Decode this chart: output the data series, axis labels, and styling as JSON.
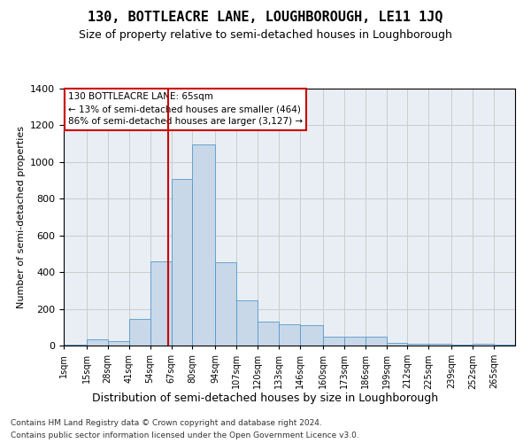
{
  "title": "130, BOTTLEACRE LANE, LOUGHBOROUGH, LE11 1JQ",
  "subtitle": "Size of property relative to semi-detached houses in Loughborough",
  "xlabel": "Distribution of semi-detached houses by size in Loughborough",
  "ylabel": "Number of semi-detached properties",
  "footer_line1": "Contains HM Land Registry data © Crown copyright and database right 2024.",
  "footer_line2": "Contains public sector information licensed under the Open Government Licence v3.0.",
  "annotation_title": "130 BOTTLEACRE LANE: 65sqm",
  "annotation_line1": "← 13% of semi-detached houses are smaller (464)",
  "annotation_line2": "86% of semi-detached houses are larger (3,127) →",
  "property_size": 65,
  "bar_color": "#c8d8e8",
  "bar_edge_color": "#5599cc",
  "grid_color": "#cccccc",
  "bg_color": "#e8eef4",
  "redline_color": "#cc0000",
  "annotation_box_color": "#ffffff",
  "annotation_box_edge": "#cc0000",
  "categories": [
    "1sqm",
    "15sqm",
    "28sqm",
    "41sqm",
    "54sqm",
    "67sqm",
    "80sqm",
    "94sqm",
    "107sqm",
    "120sqm",
    "133sqm",
    "146sqm",
    "160sqm",
    "173sqm",
    "186sqm",
    "199sqm",
    "212sqm",
    "225sqm",
    "239sqm",
    "252sqm",
    "265sqm"
  ],
  "bin_edges": [
    1,
    15,
    28,
    41,
    54,
    67,
    80,
    94,
    107,
    120,
    133,
    146,
    160,
    173,
    186,
    199,
    212,
    225,
    239,
    252,
    265,
    278
  ],
  "values": [
    5,
    35,
    25,
    145,
    460,
    910,
    1095,
    455,
    245,
    130,
    115,
    110,
    50,
    50,
    50,
    15,
    10,
    10,
    5,
    10,
    5
  ],
  "ylim": [
    0,
    1400
  ],
  "yticks": [
    0,
    200,
    400,
    600,
    800,
    1000,
    1200,
    1400
  ],
  "title_fontsize": 11,
  "subtitle_fontsize": 9
}
